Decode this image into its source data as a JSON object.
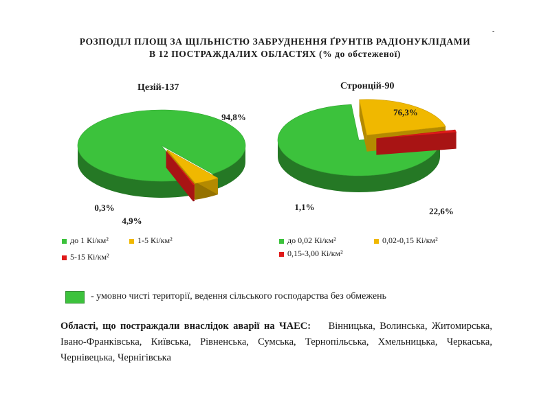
{
  "header": {
    "title_line1": "РОЗПОДІЛ ПЛОЩ ЗА ЩІЛЬНІСТЮ ЗАБРУДНЕННЯ ҐРУНТІВ РАДІОНУКЛІДАМИ",
    "title_line2": "В 12 ПОСТРАЖДАЛИХ ОБЛАСТЯХ (% до обстеженої)"
  },
  "chart_data": [
    {
      "type": "pie",
      "title": "Цезій-137",
      "categories": [
        "до 1 Кі/км²",
        "1-5  Кі/км²",
        "5-15 Кі/км²"
      ],
      "values": [
        94.8,
        4.9,
        0.3
      ],
      "value_labels": [
        "94,8%",
        "4,9%",
        "0,3%"
      ],
      "colors": [
        "#3cc23c",
        "#f0b800",
        "#e01a1a"
      ],
      "legend": [
        "до 1 Кі/км²",
        "1-5  Кі/км²",
        "5-15 Кі/км²"
      ]
    },
    {
      "type": "pie",
      "title": "Стронцій-90",
      "categories": [
        "до 0,02 Кі/км²",
        "0,02-0,15 Кі/км²",
        "0,15-3,00 Кі/км²"
      ],
      "values": [
        76.3,
        22.6,
        1.1
      ],
      "value_labels": [
        "76,3%",
        "22,6%",
        "1,1%"
      ],
      "colors": [
        "#3cc23c",
        "#f0b800",
        "#e01a1a"
      ],
      "legend": [
        "до 0,02 Кі/км²",
        "0,02-0,15 Кі/км²",
        "0,15-3,00 Кі/км²"
      ]
    }
  ],
  "note": {
    "color": "#3cc23c",
    "text": "- умовно чисті території, ведення сільського господарства без обмежень"
  },
  "regions": {
    "label": "Області, що постраждали внаслідок аварії на ЧАЕС:",
    "list": "Вінницька, Волинська, Житомирська, Івано-Франківська, Київська, Рівненська, Сумська, Тернопільська, Хмельницька, Черкаська, Чернівецька, Чернігівська"
  },
  "corner_mark": "-"
}
